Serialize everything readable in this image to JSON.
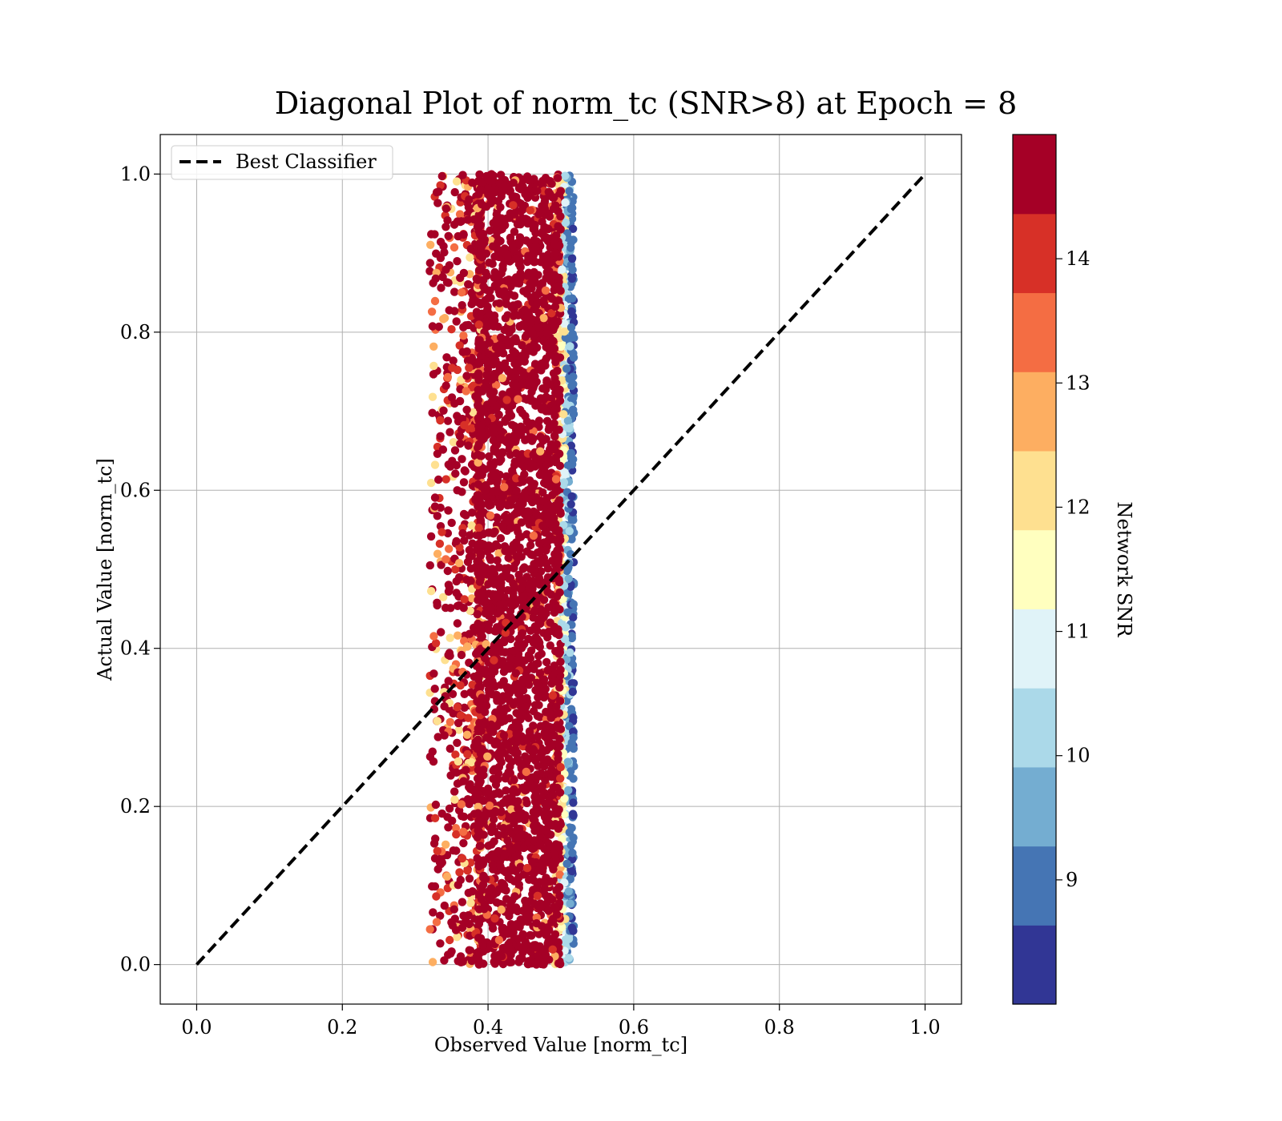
{
  "chart_data": {
    "type": "scatter",
    "title": "Diagonal Plot of norm_tc (SNR>8) at Epoch = 8",
    "xlabel": "Observed Value [norm_tc]",
    "ylabel": "Actual Value [norm_tc]",
    "xlim": [
      -0.05,
      1.05
    ],
    "ylim": [
      -0.05,
      1.05
    ],
    "xticks": [
      "0.0",
      "0.2",
      "0.4",
      "0.6",
      "0.8",
      "1.0"
    ],
    "yticks": [
      "0.0",
      "0.2",
      "0.4",
      "0.6",
      "0.8",
      "1.0"
    ],
    "grid": true,
    "legend": {
      "placement": "top-left",
      "entries": [
        "Best Classifier"
      ]
    },
    "reference_line": {
      "name": "Best Classifier",
      "style": "dashed",
      "color": "#000000",
      "x": [
        0.0,
        1.0
      ],
      "y": [
        0.0,
        1.0
      ]
    },
    "scatter_summary": {
      "x_range": [
        0.31,
        0.52
      ],
      "core_x_range": [
        0.38,
        0.5
      ],
      "y_range": [
        0.0,
        1.0
      ]
    },
    "colorbar": {
      "label": "Network SNR",
      "range": [
        8,
        15
      ],
      "ticks": [
        "9",
        "10",
        "11",
        "12",
        "13",
        "14"
      ],
      "colors": [
        "#313695",
        "#4575b4",
        "#74add1",
        "#abd9e9",
        "#e0f3f8",
        "#ffffbf",
        "#fee090",
        "#fdae61",
        "#f46d43",
        "#d73027",
        "#a50026"
      ]
    }
  }
}
